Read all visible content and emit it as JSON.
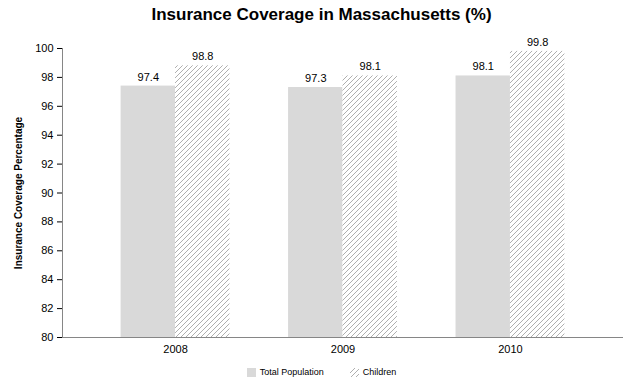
{
  "chart_data": {
    "type": "bar",
    "title": "Insurance Coverage in Massachusetts (%)",
    "y_label": "Insurance Coverage Percentage",
    "categories": [
      "2008",
      "2009",
      "2010"
    ],
    "series": [
      {
        "name": "Total Population",
        "color": "#d9d9d9",
        "values": [
          97.4,
          97.3,
          98.1
        ]
      },
      {
        "name": "Children",
        "color": "#a6a6a6",
        "values": [
          98.8,
          98.1,
          99.8
        ]
      }
    ],
    "ylim": [
      80,
      100
    ],
    "yticks": [
      80,
      82,
      84,
      86,
      88,
      90,
      92,
      94,
      96,
      98,
      100
    ],
    "grid": false,
    "data_labels": true,
    "legend": "bottom"
  }
}
